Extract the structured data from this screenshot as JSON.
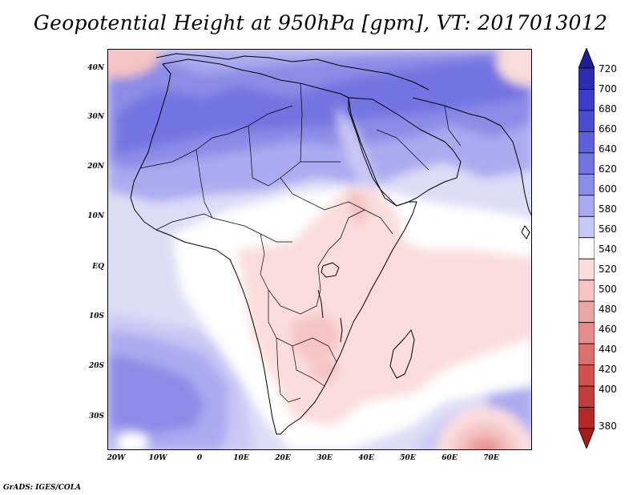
{
  "title": "Geopotential Height at 950hPa [gpm], VT: 2017013012",
  "credit": "GrADS: IGES/COLA",
  "map": {
    "region": "Africa",
    "projection": "lat-lon",
    "lon_range": [
      -23,
      79
    ],
    "lat_range": [
      -36,
      46
    ],
    "lat_ticks": [
      "40N",
      "30N",
      "20N",
      "10N",
      "EQ",
      "10S",
      "20S",
      "30S"
    ],
    "lat_tick_values": [
      40,
      30,
      20,
      10,
      0,
      -10,
      -20,
      -30
    ],
    "lon_ticks": [
      "20W",
      "10W",
      "0",
      "10E",
      "20E",
      "30E",
      "40E",
      "50E",
      "60E",
      "70E"
    ],
    "lon_tick_values": [
      -20,
      -10,
      0,
      10,
      20,
      30,
      40,
      50,
      60,
      70
    ]
  },
  "colorbar": {
    "labels": [
      "720",
      "700",
      "680",
      "660",
      "640",
      "620",
      "600",
      "580",
      "560",
      "540",
      "520",
      "500",
      "480",
      "460",
      "440",
      "420",
      "400",
      "380"
    ],
    "colors": [
      "#1e1e96",
      "#2d2db4",
      "#3c3cc8",
      "#4b4bd2",
      "#5f5fdc",
      "#7373e1",
      "#8c8ce6",
      "#aaaaf0",
      "#c8c8f5",
      "#ffffff",
      "#fadcdc",
      "#f5c3c3",
      "#eba5a5",
      "#e68c8c",
      "#dc6e6e",
      "#d25050",
      "#c33c3c",
      "#b42828",
      "#a01e1e"
    ]
  }
}
